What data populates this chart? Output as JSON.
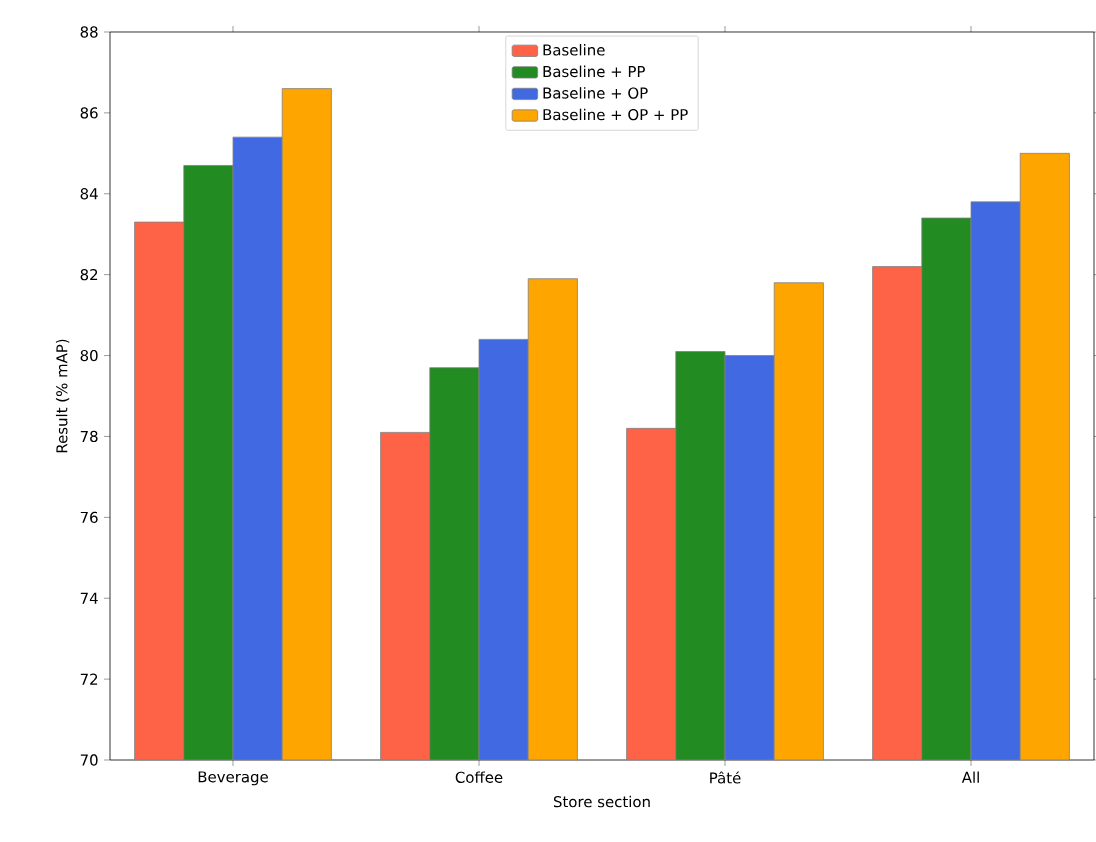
{
  "chart_data": {
    "type": "bar",
    "xlabel": "Store section",
    "ylabel": "Result (% mAP)",
    "categories": [
      "Beverage",
      "Coffee",
      "Pâté",
      "All"
    ],
    "series": [
      {
        "name": "Baseline",
        "color": "#ff6347",
        "values": [
          83.3,
          78.1,
          78.2,
          82.2
        ]
      },
      {
        "name": "Baseline + PP",
        "color": "#228b22",
        "values": [
          84.7,
          79.7,
          80.1,
          83.4
        ]
      },
      {
        "name": "Baseline + OP",
        "color": "#4169e1",
        "values": [
          85.4,
          80.4,
          80.0,
          83.8
        ]
      },
      {
        "name": "Baseline + OP + PP",
        "color": "#ffa500",
        "values": [
          86.6,
          81.9,
          81.8,
          85.0
        ]
      }
    ],
    "ylim": [
      70,
      88
    ],
    "yticks": [
      70,
      72,
      74,
      76,
      78,
      80,
      82,
      84,
      86,
      88
    ],
    "grid": false,
    "legend": "top"
  }
}
